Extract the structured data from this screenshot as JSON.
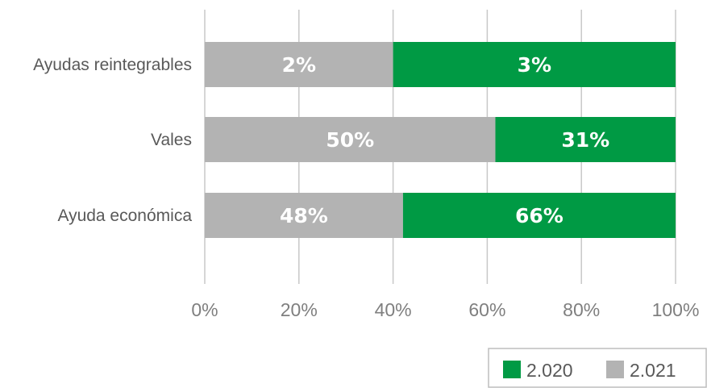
{
  "chart_data": {
    "type": "bar",
    "orientation": "horizontal",
    "stacked": "100%",
    "categories": [
      "Ayudas reintegrables",
      "Vales",
      "Ayuda económica"
    ],
    "series": [
      {
        "name": "2.021",
        "color": "#b3b3b3",
        "values": [
          2,
          50,
          48
        ],
        "labels": [
          "2%",
          "50%",
          "48%"
        ]
      },
      {
        "name": "2.020",
        "color": "#009a44",
        "values": [
          3,
          31,
          66
        ],
        "labels": [
          "3%",
          "31%",
          "66%"
        ]
      }
    ],
    "xlim": [
      0,
      100
    ],
    "xticks": [
      "0%",
      "20%",
      "40%",
      "60%",
      "80%",
      "100%"
    ],
    "grid": true,
    "legend": {
      "position": "bottom-right",
      "order": [
        "2.020",
        "2.021"
      ]
    }
  }
}
